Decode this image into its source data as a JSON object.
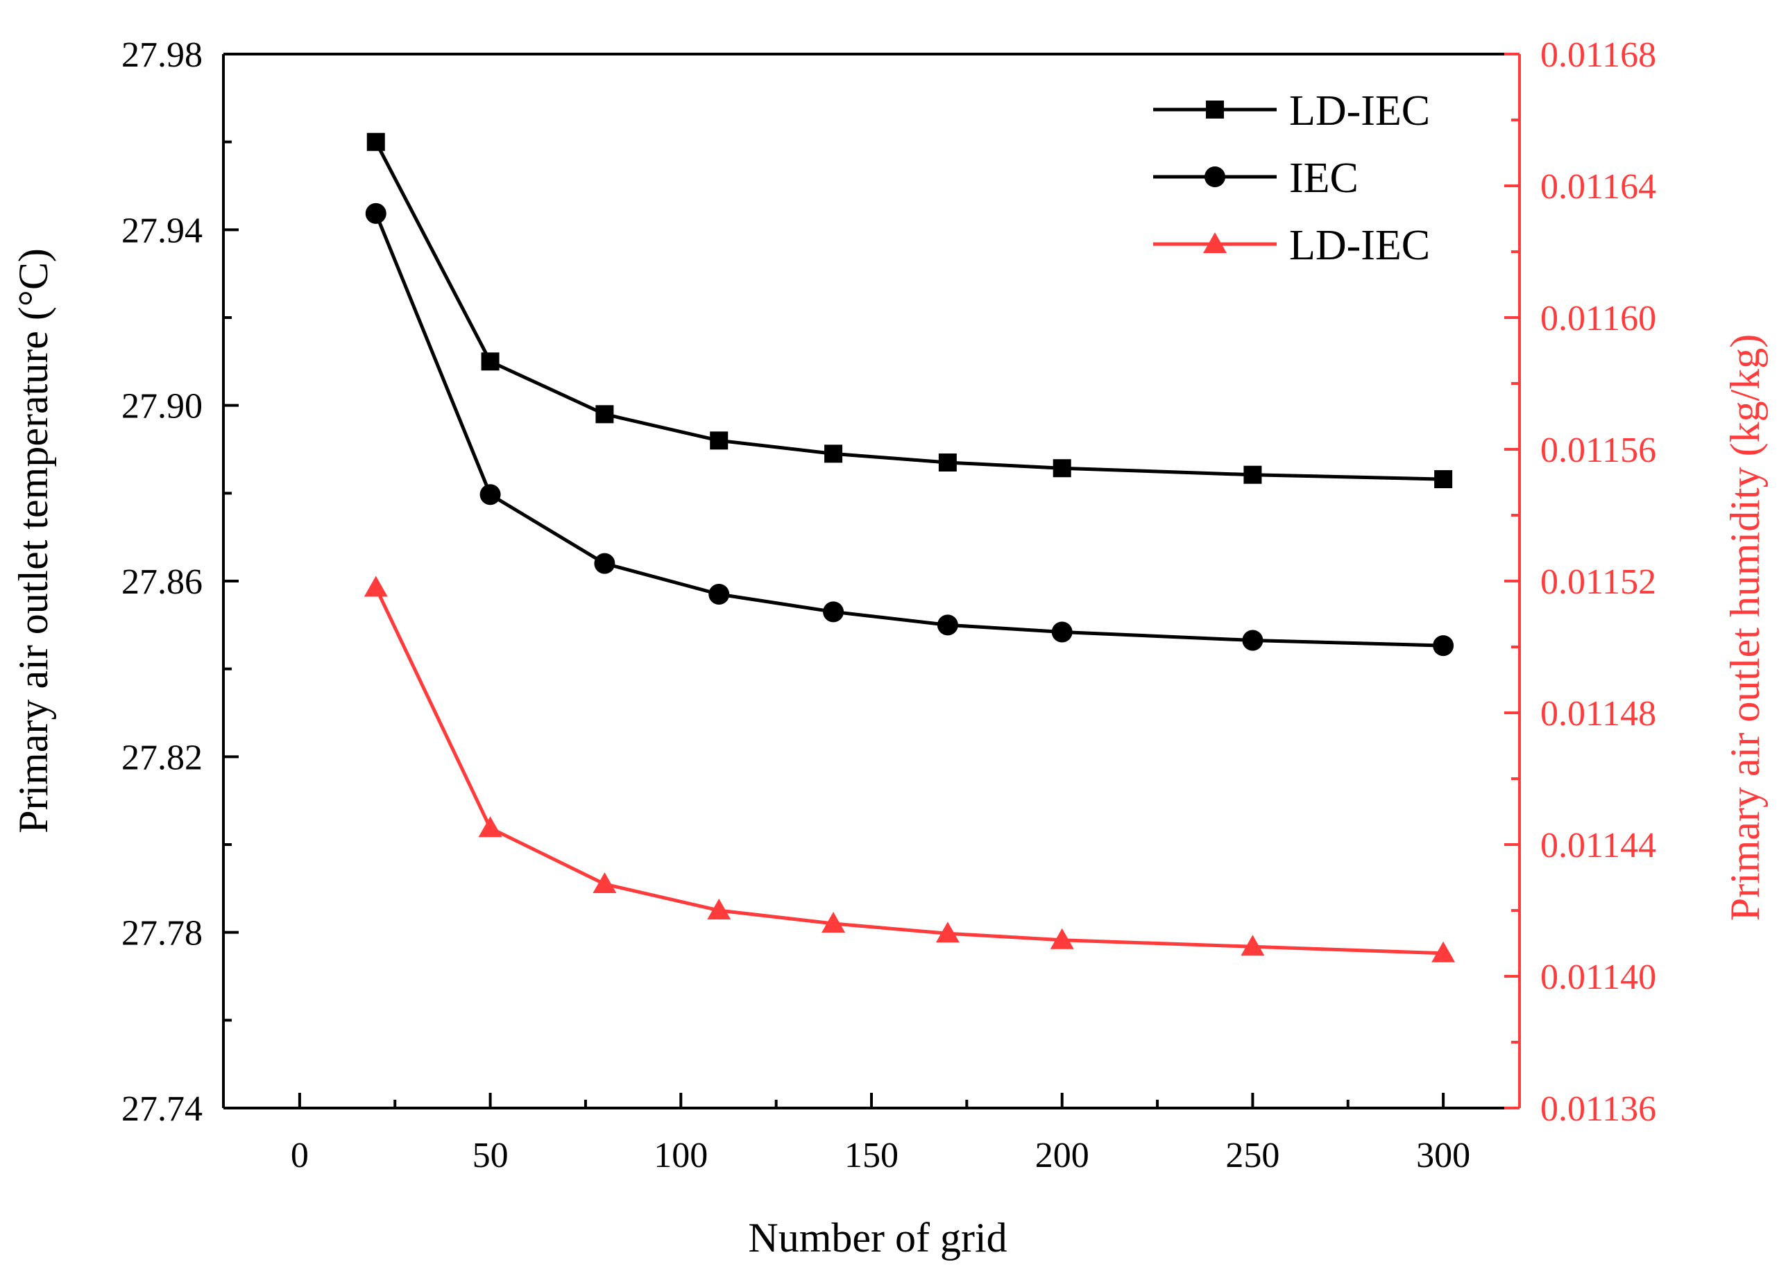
{
  "chart_data": {
    "type": "line",
    "title": "",
    "xlabel": "Number of grid",
    "ylabel_left": "Primary air outlet temperature (°C)",
    "ylabel_right": "Primary air outlet humidity (kg/kg)",
    "x_ticks": [
      "0",
      "50",
      "100",
      "150",
      "200",
      "250",
      "300"
    ],
    "y_left_ticks": [
      "27.74",
      "27.78",
      "27.82",
      "27.86",
      "27.90",
      "27.94",
      "27.98"
    ],
    "y_right_ticks": [
      "0.01136",
      "0.01140",
      "0.01144",
      "0.01148",
      "0.01152",
      "0.01156",
      "0.01160",
      "0.01164",
      "0.01168"
    ],
    "xlim": [
      -20,
      320
    ],
    "ylim_left": [
      27.74,
      27.98
    ],
    "ylim_right": [
      0.01136,
      0.01168
    ],
    "legend_position": "top-right",
    "colors": {
      "black": "#000000",
      "red": "#ff3b3b"
    },
    "series": [
      {
        "name": "LD-IEC",
        "axis": "left",
        "marker": "square",
        "color": "#000000",
        "x": [
          20,
          50,
          80,
          110,
          140,
          170,
          200,
          250,
          300
        ],
        "y": [
          27.96,
          27.91,
          27.898,
          27.892,
          27.889,
          27.887,
          27.8857,
          27.8842,
          27.8832
        ]
      },
      {
        "name": "IEC",
        "axis": "left",
        "marker": "circle",
        "color": "#000000",
        "x": [
          20,
          50,
          80,
          110,
          140,
          170,
          200,
          250,
          300
        ],
        "y": [
          27.9437,
          27.8797,
          27.864,
          27.857,
          27.853,
          27.85,
          27.8484,
          27.8465,
          27.8453
        ]
      },
      {
        "name": "LD-IEC",
        "axis": "right",
        "marker": "triangle",
        "color": "#ff3b3b",
        "x": [
          20,
          50,
          80,
          110,
          140,
          170,
          200,
          250,
          300
        ],
        "y": [
          0.011518,
          0.011445,
          0.011428,
          0.01142,
          0.011416,
          0.011413,
          0.011411,
          0.011409,
          0.011407
        ]
      }
    ]
  }
}
